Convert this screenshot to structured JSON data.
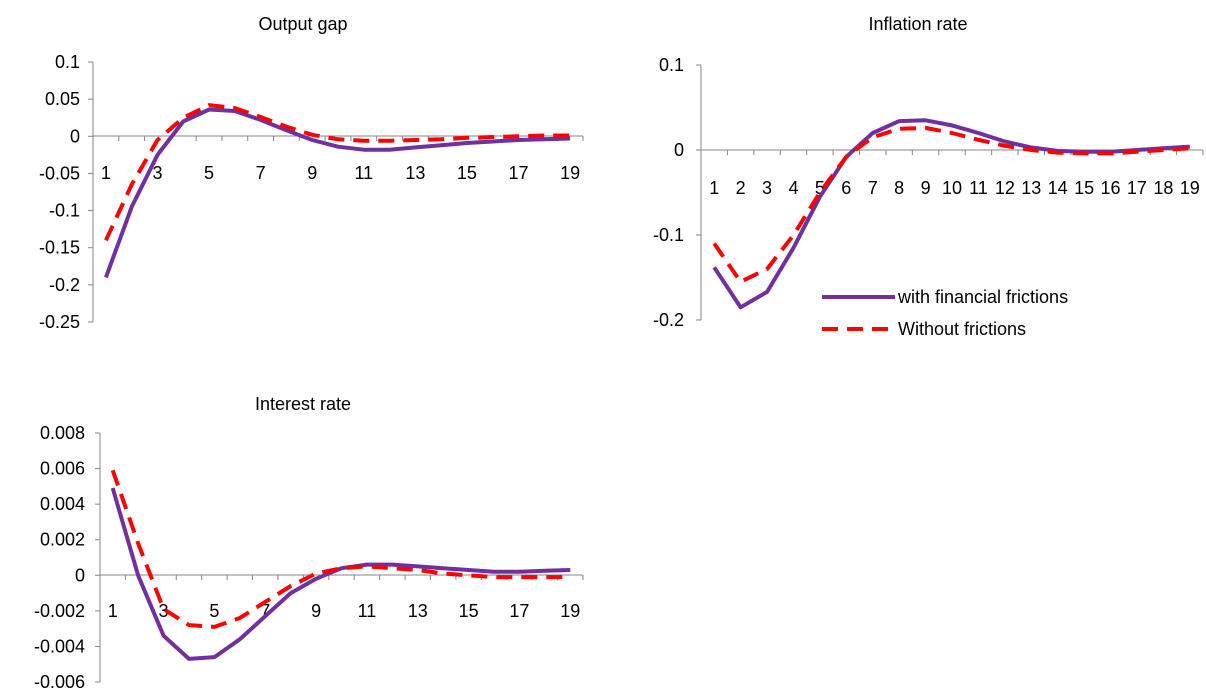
{
  "legend": {
    "items": [
      {
        "label": "with financial frictions",
        "color": "#7030A0",
        "dash": "solid"
      },
      {
        "label": "Without frictions",
        "color": "#FF0000",
        "dash": "dashed"
      }
    ]
  },
  "chart_data": [
    {
      "type": "line",
      "title": "Output gap",
      "xlabel": "",
      "ylabel": "",
      "x": [
        1,
        2,
        3,
        4,
        5,
        6,
        7,
        8,
        9,
        10,
        11,
        12,
        13,
        14,
        15,
        16,
        17,
        18,
        19
      ],
      "x_tick_labels": [
        "1",
        "3",
        "5",
        "7",
        "9",
        "11",
        "13",
        "15",
        "17",
        "19"
      ],
      "y_tick_labels": [
        "0.1",
        "0.05",
        "0",
        "-0.05",
        "-0.1",
        "-0.15",
        "-0.2",
        "-0.25"
      ],
      "ylim": [
        -0.25,
        0.1
      ],
      "grid": false,
      "series": [
        {
          "name": "with financial frictions",
          "color": "#7030A0",
          "dash": "solid",
          "values": [
            -0.19,
            -0.095,
            -0.025,
            0.02,
            0.036,
            0.034,
            0.022,
            0.008,
            -0.005,
            -0.014,
            -0.018,
            -0.018,
            -0.015,
            -0.012,
            -0.009,
            -0.007,
            -0.005,
            -0.004,
            -0.003
          ]
        },
        {
          "name": "Without frictions",
          "color": "#FF0000",
          "dash": "dashed",
          "values": [
            -0.14,
            -0.065,
            -0.005,
            0.025,
            0.042,
            0.038,
            0.026,
            0.013,
            0.002,
            -0.004,
            -0.006,
            -0.006,
            -0.005,
            -0.004,
            -0.002,
            -0.001,
            0.0,
            0.001,
            0.001
          ]
        }
      ]
    },
    {
      "type": "line",
      "title": "Inflation rate",
      "xlabel": "",
      "ylabel": "",
      "x": [
        1,
        2,
        3,
        4,
        5,
        6,
        7,
        8,
        9,
        10,
        11,
        12,
        13,
        14,
        15,
        16,
        17,
        18,
        19
      ],
      "x_tick_labels": [
        "1",
        "2",
        "3",
        "4",
        "5",
        "6",
        "7",
        "8",
        "9",
        "10",
        "11",
        "12",
        "13",
        "14",
        "15",
        "16",
        "17",
        "18",
        "19"
      ],
      "y_tick_labels": [
        "0.1",
        "0",
        "-0.1",
        "-0.2"
      ],
      "ylim": [
        -0.2,
        0.1
      ],
      "grid": false,
      "legend_position": "bottom-right",
      "series": [
        {
          "name": "with financial frictions",
          "color": "#7030A0",
          "dash": "solid",
          "values": [
            -0.138,
            -0.185,
            -0.167,
            -0.115,
            -0.055,
            -0.008,
            0.02,
            0.034,
            0.035,
            0.029,
            0.02,
            0.01,
            0.003,
            -0.001,
            -0.002,
            -0.002,
            0.0,
            0.002,
            0.004
          ]
        },
        {
          "name": "Without frictions",
          "color": "#FF0000",
          "dash": "dashed",
          "values": [
            -0.11,
            -0.155,
            -0.14,
            -0.1,
            -0.05,
            -0.008,
            0.015,
            0.025,
            0.026,
            0.02,
            0.012,
            0.005,
            0.0,
            -0.003,
            -0.004,
            -0.004,
            -0.002,
            0.0,
            0.002
          ]
        }
      ]
    },
    {
      "type": "line",
      "title": "Interest rate",
      "xlabel": "",
      "ylabel": "",
      "x": [
        1,
        2,
        3,
        4,
        5,
        6,
        7,
        8,
        9,
        10,
        11,
        12,
        13,
        14,
        15,
        16,
        17,
        18,
        19
      ],
      "x_tick_labels": [
        "1",
        "3",
        "5",
        "7",
        "9",
        "11",
        "13",
        "15",
        "17",
        "19"
      ],
      "y_tick_labels": [
        "0.008",
        "0.006",
        "0.004",
        "0.002",
        "0",
        "-0.002",
        "-0.004",
        "-0.006"
      ],
      "ylim": [
        -0.006,
        0.008
      ],
      "grid": false,
      "series": [
        {
          "name": "with financial frictions",
          "color": "#7030A0",
          "dash": "solid",
          "values": [
            0.0049,
            0.0,
            -0.0034,
            -0.0047,
            -0.0046,
            -0.0036,
            -0.0023,
            -0.001,
            -0.0002,
            0.0004,
            0.0006,
            0.0006,
            0.0005,
            0.0004,
            0.0003,
            0.0002,
            0.0002,
            0.00025,
            0.0003
          ]
        },
        {
          "name": "Without frictions",
          "color": "#FF0000",
          "dash": "dashed",
          "values": [
            0.0059,
            0.0018,
            -0.0019,
            -0.0028,
            -0.0029,
            -0.0024,
            -0.0015,
            -0.0006,
            0.0001,
            0.0004,
            0.0005,
            0.0004,
            0.0003,
            0.0001,
            0.0,
            -0.0001,
            -0.0001,
            -0.0001,
            -0.0001
          ]
        }
      ]
    }
  ]
}
